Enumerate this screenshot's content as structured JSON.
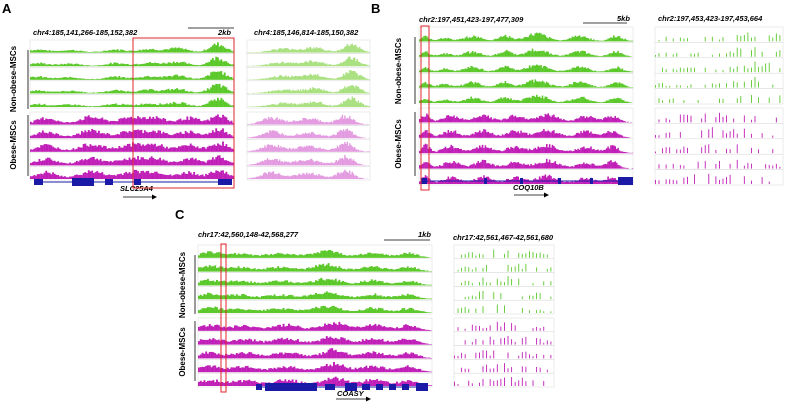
{
  "figure": {
    "colors": {
      "nonobese": "#5bc82a",
      "nonobese_light": "#a9e07f",
      "obese": "#c01fb7",
      "obese_light": "#e39be0",
      "gene": "#1a1aa6",
      "highlight": "#e0242c"
    },
    "groups": {
      "nonobese": "Non-obese-MSCs",
      "obese": "Obese-MSCs"
    },
    "panels": [
      {
        "letter": "A",
        "main_coord": "chr4:185,141,266-185,152,382",
        "scale_label": "2kb",
        "zoom_coord": "chr4:185,146,814-185,150,382",
        "gene": "SLC25A4",
        "tracks_per_group": 5,
        "bars": 120,
        "zoom_bars": 100,
        "highlight_bounds": [
          0.43,
          1.0
        ],
        "peaks_nonobese": [
          [
            0.04,
            0.3,
            0.05
          ],
          [
            0.2,
            0.25,
            0.05
          ],
          [
            0.42,
            0.3,
            0.05
          ],
          [
            0.58,
            0.35,
            0.05
          ],
          [
            0.72,
            0.45,
            0.05
          ],
          [
            0.92,
            0.9,
            0.04
          ]
        ],
        "peaks_obese": [
          [
            0.08,
            0.7,
            0.05
          ],
          [
            0.3,
            0.8,
            0.06
          ],
          [
            0.5,
            0.75,
            0.06
          ],
          [
            0.62,
            0.65,
            0.05
          ],
          [
            0.78,
            0.7,
            0.05
          ],
          [
            0.93,
            0.95,
            0.04
          ]
        ],
        "zoom_peaks_nonobese": [
          [
            0.3,
            0.4,
            0.1
          ],
          [
            0.55,
            0.5,
            0.08
          ],
          [
            0.85,
            0.9,
            0.06
          ]
        ],
        "zoom_peaks_obese": [
          [
            0.2,
            0.7,
            0.08
          ],
          [
            0.5,
            0.6,
            0.1
          ],
          [
            0.8,
            0.9,
            0.06
          ]
        ]
      },
      {
        "letter": "B",
        "main_coord": "chr2:197,451,423-197,477,309",
        "scale_label": "5kb",
        "zoom_coord": "chr2:197,453,423-197,453,664",
        "gene": "COQ10B",
        "tracks_per_group": 5,
        "bars": 150,
        "zoom_bars": 36,
        "highlight_bounds": [
          0.01,
          0.04
        ],
        "peaks_nonobese": [
          [
            0.03,
            0.4,
            0.02
          ],
          [
            0.12,
            0.3,
            0.03
          ],
          [
            0.25,
            0.45,
            0.04
          ],
          [
            0.4,
            0.5,
            0.03
          ],
          [
            0.55,
            0.65,
            0.05
          ],
          [
            0.75,
            0.5,
            0.04
          ],
          [
            0.92,
            0.45,
            0.03
          ]
        ],
        "peaks_obese": [
          [
            0.03,
            0.7,
            0.02
          ],
          [
            0.15,
            0.6,
            0.04
          ],
          [
            0.3,
            0.65,
            0.04
          ],
          [
            0.45,
            0.6,
            0.04
          ],
          [
            0.6,
            0.7,
            0.05
          ],
          [
            0.78,
            0.55,
            0.04
          ],
          [
            0.9,
            0.6,
            0.03
          ]
        ],
        "zoom_peaks_nonobese": [
          [
            0.8,
            0.9,
            0.2
          ]
        ],
        "zoom_peaks_obese": [
          [
            0.5,
            0.8,
            0.4
          ]
        ]
      },
      {
        "letter": "C",
        "main_coord": "chr17:42,560,148-42,568,277",
        "scale_label": "1kb",
        "zoom_coord": "chr17:42,561,467-42,561,680",
        "gene": "COASY",
        "tracks_per_group": 5,
        "bars": 130,
        "zoom_bars": 28,
        "highlight_bounds": [
          0.11,
          0.14
        ],
        "peaks_nonobese": [
          [
            0.05,
            0.55,
            0.05
          ],
          [
            0.18,
            0.4,
            0.05
          ],
          [
            0.35,
            0.45,
            0.06
          ],
          [
            0.55,
            0.7,
            0.06
          ],
          [
            0.75,
            0.5,
            0.05
          ],
          [
            0.9,
            0.45,
            0.04
          ]
        ],
        "peaks_obese": [
          [
            0.05,
            0.6,
            0.05
          ],
          [
            0.2,
            0.55,
            0.05
          ],
          [
            0.38,
            0.6,
            0.06
          ],
          [
            0.58,
            0.85,
            0.05
          ],
          [
            0.75,
            0.65,
            0.05
          ],
          [
            0.9,
            0.55,
            0.04
          ]
        ],
        "zoom_peaks_nonobese": [
          [
            0.5,
            0.8,
            0.4
          ]
        ],
        "zoom_peaks_obese": [
          [
            0.5,
            0.8,
            0.4
          ]
        ]
      }
    ]
  }
}
